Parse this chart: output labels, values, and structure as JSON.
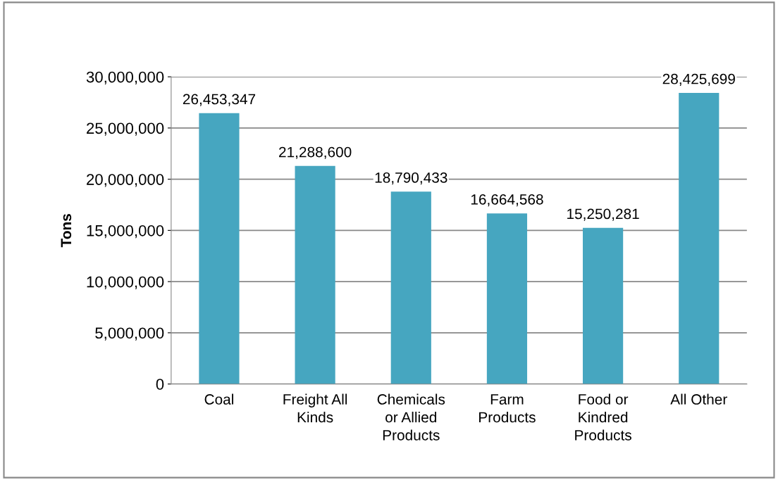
{
  "chart_data": {
    "type": "bar",
    "ylabel": "Tons",
    "categories": [
      "Coal",
      "Freight All Kinds",
      "Chemicals or Allied Products",
      "Farm Products",
      "Food or Kindred Products",
      "All Other"
    ],
    "values": [
      26453347,
      21288600,
      18790433,
      16664568,
      15250281,
      28425699
    ],
    "color": "#46a6c0",
    "ylim": [
      0,
      30000000
    ],
    "yticks": [
      {
        "value": 0,
        "label": "0"
      },
      {
        "value": 5000000,
        "label": "5,000,000"
      },
      {
        "value": 10000000,
        "label": "10,000,000"
      },
      {
        "value": 15000000,
        "label": "15,000,000"
      },
      {
        "value": 20000000,
        "label": "20,000,000"
      },
      {
        "value": 25000000,
        "label": "25,000,000"
      },
      {
        "value": 30000000,
        "label": "30,000,000"
      }
    ],
    "value_labels": [
      "26,453,347",
      "21,288,600",
      "18,790,433",
      "16,664,568",
      "15,250,281",
      "28,425,699"
    ],
    "grid": "y"
  }
}
